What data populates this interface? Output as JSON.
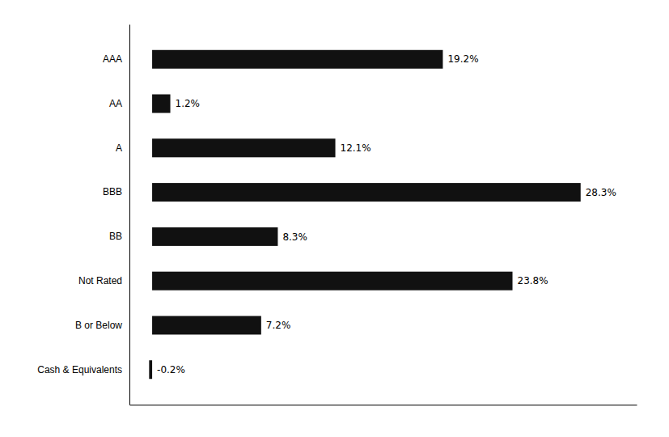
{
  "chart_data": {
    "type": "bar",
    "orientation": "horizontal",
    "categories": [
      "AAA",
      "AA",
      "A",
      "BBB",
      "BB",
      "Not Rated",
      "B or Below",
      "Cash & Equivalents"
    ],
    "values": [
      19.2,
      1.2,
      12.1,
      28.3,
      8.3,
      23.8,
      7.2,
      -0.2
    ],
    "value_labels": [
      "19.2%",
      "1.2%",
      "12.1%",
      "28.3%",
      "8.3%",
      "23.8%",
      "7.2%",
      "-0.2%"
    ],
    "color": "#111111",
    "xlim": [
      -1.5,
      32
    ],
    "xticks": [],
    "data_labels": true,
    "tick_labels": "y",
    "grid": false
  }
}
